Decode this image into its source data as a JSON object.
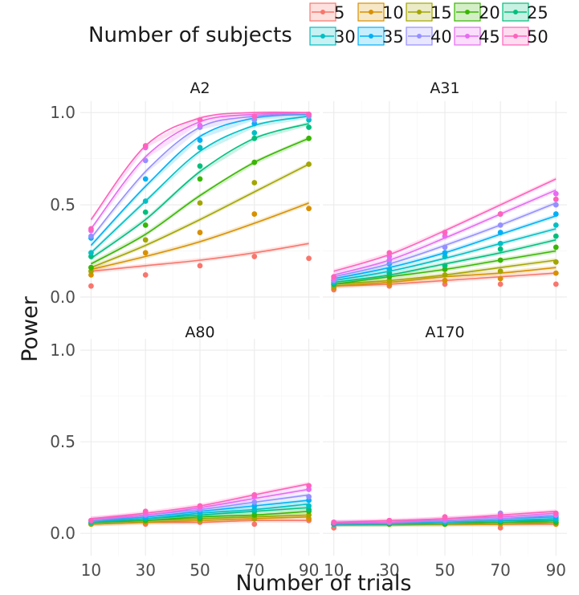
{
  "chart_data": {
    "type": "line",
    "legend": {
      "title": "Number of subjects",
      "placement": "top",
      "entries": [
        "5",
        "10",
        "15",
        "20",
        "25",
        "30",
        "35",
        "40",
        "45",
        "50"
      ]
    },
    "colors": [
      "#F8766D",
      "#D89000",
      "#A3A500",
      "#39B600",
      "#00BF7D",
      "#00BFC4",
      "#00B0F6",
      "#9590FF",
      "#E76BF3",
      "#FF62BC"
    ],
    "xlabel": "Number of trials",
    "ylabel": "Power",
    "x": [
      10,
      30,
      50,
      70,
      90
    ],
    "xticks": [
      "10",
      "30",
      "50",
      "70",
      "90"
    ],
    "yticks": [
      "0.0",
      "0.5",
      "1.0"
    ],
    "ylim": [
      0,
      1
    ],
    "grid": true,
    "panels": [
      {
        "label": "A2",
        "series": [
          {
            "name": "5",
            "points": [
              0.06,
              0.12,
              0.17,
              0.22,
              0.21
            ],
            "fit": [
              0.14,
              0.17,
              0.2,
              0.24,
              0.29
            ]
          },
          {
            "name": "10",
            "points": [
              0.12,
              0.24,
              0.35,
              0.45,
              0.48
            ],
            "fit": [
              0.15,
              0.22,
              0.3,
              0.4,
              0.51
            ]
          },
          {
            "name": "15",
            "points": [
              0.14,
              0.31,
              0.51,
              0.62,
              0.72
            ],
            "fit": [
              0.16,
              0.28,
              0.42,
              0.57,
              0.72
            ]
          },
          {
            "name": "20",
            "points": [
              0.16,
              0.39,
              0.64,
              0.73,
              0.86
            ],
            "fit": [
              0.18,
              0.34,
              0.55,
              0.73,
              0.86
            ]
          },
          {
            "name": "25",
            "points": [
              0.22,
              0.46,
              0.71,
              0.86,
              0.92
            ],
            "fit": [
              0.21,
              0.42,
              0.68,
              0.86,
              0.94
            ]
          },
          {
            "name": "30",
            "points": [
              0.24,
              0.52,
              0.81,
              0.89,
              0.96
            ],
            "fit": [
              0.24,
              0.52,
              0.79,
              0.93,
              0.98
            ]
          },
          {
            "name": "35",
            "points": [
              0.32,
              0.64,
              0.85,
              0.94,
              0.98
            ],
            "fit": [
              0.28,
              0.6,
              0.87,
              0.97,
              0.99
            ]
          },
          {
            "name": "40",
            "points": [
              0.33,
              0.74,
              0.92,
              0.96,
              0.98
            ],
            "fit": [
              0.32,
              0.68,
              0.92,
              0.98,
              1.0
            ]
          },
          {
            "name": "45",
            "points": [
              0.36,
              0.81,
              0.93,
              0.98,
              0.99
            ],
            "fit": [
              0.37,
              0.76,
              0.95,
              0.99,
              1.0
            ]
          },
          {
            "name": "50",
            "points": [
              0.37,
              0.82,
              0.96,
              0.98,
              0.99
            ],
            "fit": [
              0.42,
              0.82,
              0.97,
              1.0,
              1.0
            ]
          }
        ]
      },
      {
        "label": "A31",
        "series": [
          {
            "name": "5",
            "points": [
              0.04,
              0.06,
              0.07,
              0.07,
              0.07
            ],
            "fit": [
              0.06,
              0.07,
              0.09,
              0.11,
              0.13
            ]
          },
          {
            "name": "10",
            "points": [
              0.05,
              0.07,
              0.09,
              0.1,
              0.13
            ],
            "fit": [
              0.06,
              0.08,
              0.11,
              0.13,
              0.16
            ]
          },
          {
            "name": "15",
            "points": [
              0.06,
              0.09,
              0.12,
              0.14,
              0.19
            ],
            "fit": [
              0.07,
              0.09,
              0.12,
              0.16,
              0.2
            ]
          },
          {
            "name": "20",
            "points": [
              0.07,
              0.11,
              0.15,
              0.2,
              0.27
            ],
            "fit": [
              0.07,
              0.11,
              0.15,
              0.2,
              0.25
            ]
          },
          {
            "name": "25",
            "points": [
              0.07,
              0.13,
              0.17,
              0.26,
              0.33
            ],
            "fit": [
              0.08,
              0.12,
              0.18,
              0.24,
              0.31
            ]
          },
          {
            "name": "30",
            "points": [
              0.08,
              0.15,
              0.22,
              0.29,
              0.39
            ],
            "fit": [
              0.09,
              0.14,
              0.21,
              0.29,
              0.37
            ]
          },
          {
            "name": "35",
            "points": [
              0.09,
              0.18,
              0.24,
              0.35,
              0.45
            ],
            "fit": [
              0.1,
              0.16,
              0.24,
              0.34,
              0.44
            ]
          },
          {
            "name": "40",
            "points": [
              0.09,
              0.2,
              0.27,
              0.39,
              0.5
            ],
            "fit": [
              0.11,
              0.18,
              0.28,
              0.39,
              0.51
            ]
          },
          {
            "name": "45",
            "points": [
              0.1,
              0.22,
              0.33,
              0.45,
              0.56
            ],
            "fit": [
              0.12,
              0.2,
              0.32,
              0.45,
              0.58
            ]
          },
          {
            "name": "50",
            "points": [
              0.11,
              0.24,
              0.35,
              0.45,
              0.53
            ],
            "fit": [
              0.14,
              0.23,
              0.36,
              0.5,
              0.64
            ]
          }
        ]
      },
      {
        "label": "A80",
        "series": [
          {
            "name": "5",
            "points": [
              0.05,
              0.05,
              0.06,
              0.05,
              0.07
            ],
            "fit": [
              0.05,
              0.06,
              0.06,
              0.07,
              0.07
            ]
          },
          {
            "name": "10",
            "points": [
              0.05,
              0.06,
              0.07,
              0.08,
              0.08
            ],
            "fit": [
              0.05,
              0.06,
              0.07,
              0.08,
              0.09
            ]
          },
          {
            "name": "15",
            "points": [
              0.05,
              0.07,
              0.07,
              0.08,
              0.1
            ],
            "fit": [
              0.06,
              0.07,
              0.08,
              0.09,
              0.1
            ]
          },
          {
            "name": "20",
            "points": [
              0.06,
              0.07,
              0.08,
              0.1,
              0.12
            ],
            "fit": [
              0.06,
              0.07,
              0.09,
              0.1,
              0.12
            ]
          },
          {
            "name": "25",
            "points": [
              0.06,
              0.08,
              0.09,
              0.12,
              0.13
            ],
            "fit": [
              0.06,
              0.08,
              0.1,
              0.12,
              0.14
            ]
          },
          {
            "name": "30",
            "points": [
              0.06,
              0.09,
              0.11,
              0.13,
              0.15
            ],
            "fit": [
              0.07,
              0.08,
              0.11,
              0.13,
              0.16
            ]
          },
          {
            "name": "35",
            "points": [
              0.07,
              0.09,
              0.12,
              0.15,
              0.18
            ],
            "fit": [
              0.07,
              0.09,
              0.12,
              0.15,
              0.18
            ]
          },
          {
            "name": "40",
            "points": [
              0.07,
              0.1,
              0.13,
              0.17,
              0.2
            ],
            "fit": [
              0.07,
              0.1,
              0.13,
              0.17,
              0.21
            ]
          },
          {
            "name": "45",
            "points": [
              0.07,
              0.11,
              0.14,
              0.2,
              0.24
            ],
            "fit": [
              0.08,
              0.1,
              0.14,
              0.19,
              0.24
            ]
          },
          {
            "name": "50",
            "points": [
              0.07,
              0.12,
              0.15,
              0.21,
              0.26
            ],
            "fit": [
              0.08,
              0.11,
              0.15,
              0.21,
              0.27
            ]
          }
        ]
      },
      {
        "label": "A170",
        "series": [
          {
            "name": "5",
            "points": [
              0.03,
              0.05,
              0.05,
              0.03,
              0.05
            ],
            "fit": [
              0.05,
              0.05,
              0.05,
              0.05,
              0.05
            ]
          },
          {
            "name": "10",
            "points": [
              0.05,
              0.05,
              0.05,
              0.05,
              0.05
            ],
            "fit": [
              0.05,
              0.05,
              0.05,
              0.05,
              0.06
            ]
          },
          {
            "name": "15",
            "points": [
              0.05,
              0.05,
              0.05,
              0.06,
              0.06
            ],
            "fit": [
              0.05,
              0.05,
              0.05,
              0.06,
              0.06
            ]
          },
          {
            "name": "20",
            "points": [
              0.05,
              0.05,
              0.05,
              0.06,
              0.06
            ],
            "fit": [
              0.05,
              0.05,
              0.06,
              0.06,
              0.07
            ]
          },
          {
            "name": "25",
            "points": [
              0.05,
              0.06,
              0.06,
              0.07,
              0.07
            ],
            "fit": [
              0.05,
              0.05,
              0.06,
              0.07,
              0.07
            ]
          },
          {
            "name": "30",
            "points": [
              0.05,
              0.06,
              0.06,
              0.07,
              0.08
            ],
            "fit": [
              0.05,
              0.06,
              0.06,
              0.07,
              0.08
            ]
          },
          {
            "name": "35",
            "points": [
              0.06,
              0.06,
              0.07,
              0.08,
              0.09
            ],
            "fit": [
              0.05,
              0.06,
              0.07,
              0.08,
              0.09
            ]
          },
          {
            "name": "40",
            "points": [
              0.06,
              0.06,
              0.07,
              0.11,
              0.1
            ],
            "fit": [
              0.06,
              0.06,
              0.07,
              0.08,
              0.1
            ]
          },
          {
            "name": "45",
            "points": [
              0.06,
              0.07,
              0.08,
              0.09,
              0.1
            ],
            "fit": [
              0.06,
              0.06,
              0.08,
              0.09,
              0.11
            ]
          },
          {
            "name": "50",
            "points": [
              0.06,
              0.07,
              0.09,
              0.1,
              0.11
            ],
            "fit": [
              0.06,
              0.07,
              0.08,
              0.1,
              0.12
            ]
          }
        ]
      }
    ]
  }
}
